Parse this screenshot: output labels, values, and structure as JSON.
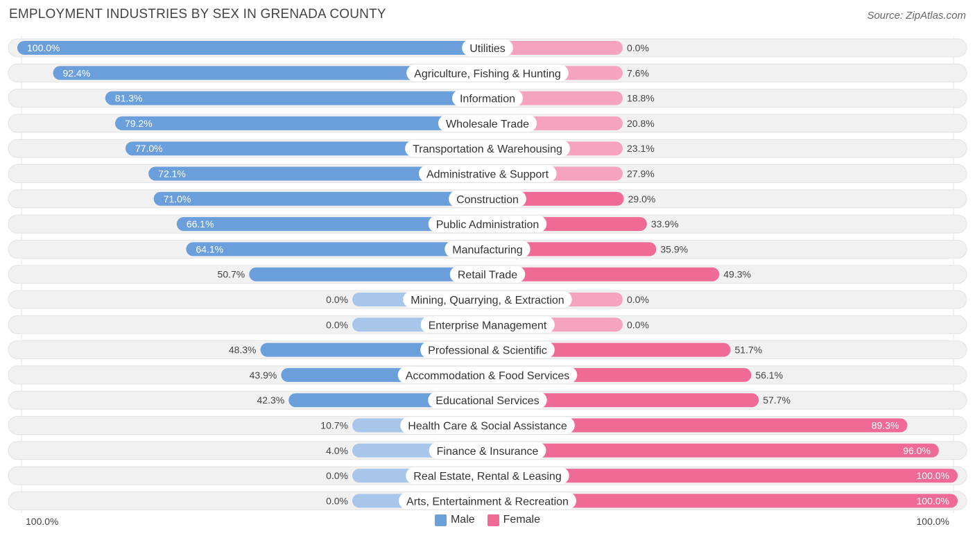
{
  "header": {
    "title": "EMPLOYMENT INDUSTRIES BY SEX IN GRENADA COUNTY",
    "source": "Source: ZipAtlas.com"
  },
  "colors": {
    "male": "#6a9fdc",
    "male_light": "#a8c6ea",
    "female": "#f06a96",
    "female_light": "#f5a3be",
    "track": "#f1f1f1"
  },
  "chart_data": {
    "type": "bar",
    "orientation": "horizontal-diverging",
    "title": "EMPLOYMENT INDUSTRIES BY SEX IN GRENADA COUNTY",
    "xlim": [
      -100,
      100
    ],
    "series": [
      {
        "name": "Male"
      },
      {
        "name": "Female"
      }
    ],
    "rows": [
      {
        "category": "Utilities",
        "male": 100.0,
        "female": 0.0,
        "male_label": "100.0%",
        "female_label": "0.0%"
      },
      {
        "category": "Agriculture, Fishing & Hunting",
        "male": 92.4,
        "female": 7.6,
        "male_label": "92.4%",
        "female_label": "7.6%"
      },
      {
        "category": "Information",
        "male": 81.3,
        "female": 18.8,
        "male_label": "81.3%",
        "female_label": "18.8%"
      },
      {
        "category": "Wholesale Trade",
        "male": 79.2,
        "female": 20.8,
        "male_label": "79.2%",
        "female_label": "20.8%"
      },
      {
        "category": "Transportation & Warehousing",
        "male": 77.0,
        "female": 23.1,
        "male_label": "77.0%",
        "female_label": "23.1%"
      },
      {
        "category": "Administrative & Support",
        "male": 72.1,
        "female": 27.9,
        "male_label": "72.1%",
        "female_label": "27.9%"
      },
      {
        "category": "Construction",
        "male": 71.0,
        "female": 29.0,
        "male_label": "71.0%",
        "female_label": "29.0%"
      },
      {
        "category": "Public Administration",
        "male": 66.1,
        "female": 33.9,
        "male_label": "66.1%",
        "female_label": "33.9%"
      },
      {
        "category": "Manufacturing",
        "male": 64.1,
        "female": 35.9,
        "male_label": "64.1%",
        "female_label": "35.9%"
      },
      {
        "category": "Retail Trade",
        "male": 50.7,
        "female": 49.3,
        "male_label": "50.7%",
        "female_label": "49.3%"
      },
      {
        "category": "Mining, Quarrying, & Extraction",
        "male": 0.0,
        "female": 0.0,
        "male_label": "0.0%",
        "female_label": "0.0%"
      },
      {
        "category": "Enterprise Management",
        "male": 0.0,
        "female": 0.0,
        "male_label": "0.0%",
        "female_label": "0.0%"
      },
      {
        "category": "Professional & Scientific",
        "male": 48.3,
        "female": 51.7,
        "male_label": "48.3%",
        "female_label": "51.7%"
      },
      {
        "category": "Accommodation & Food Services",
        "male": 43.9,
        "female": 56.1,
        "male_label": "43.9%",
        "female_label": "56.1%"
      },
      {
        "category": "Educational Services",
        "male": 42.3,
        "female": 57.7,
        "male_label": "42.3%",
        "female_label": "57.7%"
      },
      {
        "category": "Health Care & Social Assistance",
        "male": 10.7,
        "female": 89.3,
        "male_label": "10.7%",
        "female_label": "89.3%"
      },
      {
        "category": "Finance & Insurance",
        "male": 4.0,
        "female": 96.0,
        "male_label": "4.0%",
        "female_label": "96.0%"
      },
      {
        "category": "Real Estate, Rental & Leasing",
        "male": 0.0,
        "female": 100.0,
        "male_label": "0.0%",
        "female_label": "100.0%"
      },
      {
        "category": "Arts, Entertainment & Recreation",
        "male": 0.0,
        "female": 100.0,
        "male_label": "0.0%",
        "female_label": "100.0%"
      }
    ],
    "axis": {
      "left_label": "100.0%",
      "right_label": "100.0%"
    },
    "legend": [
      {
        "name": "Male",
        "color": "#6a9fdc"
      },
      {
        "name": "Female",
        "color": "#f06a96"
      }
    ]
  }
}
